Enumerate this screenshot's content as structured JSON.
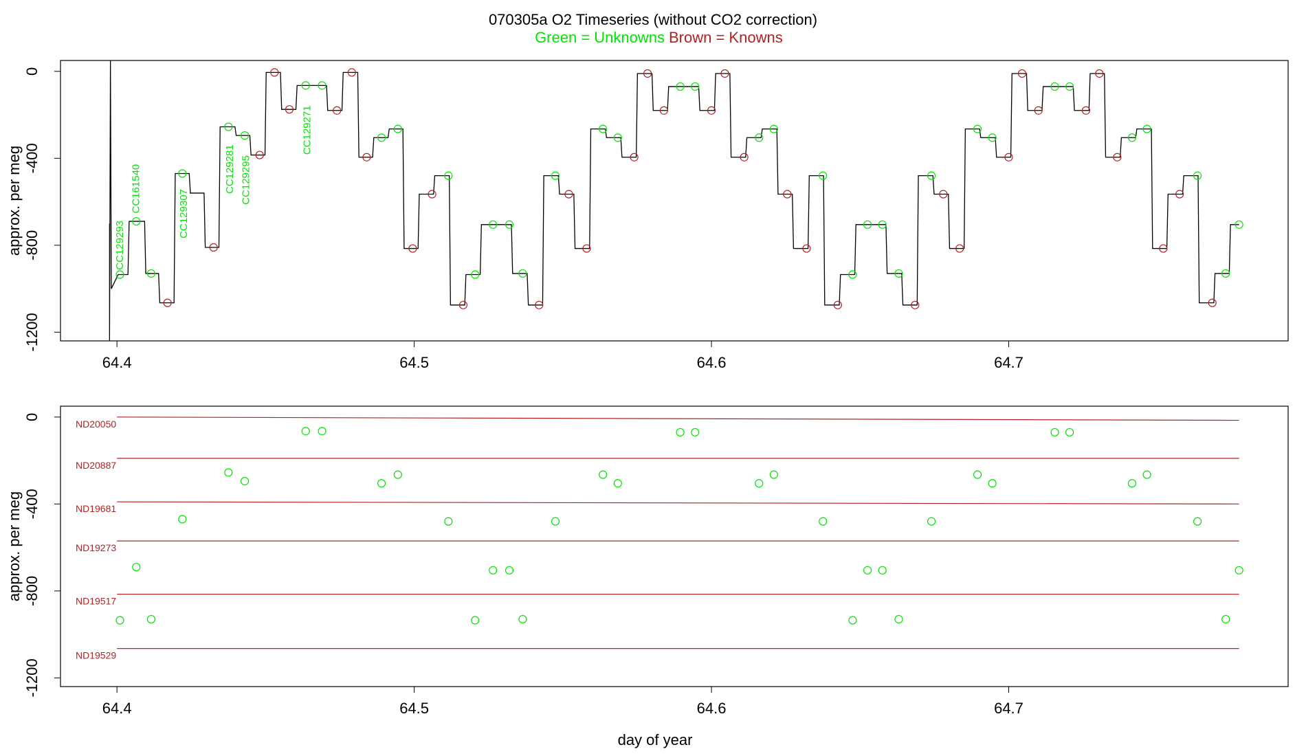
{
  "header": {
    "title": "070305a   O2 Timeseries (without CO2 correction)",
    "legend_green": "Green = Unknowns",
    "legend_brown": "Brown = Knowns"
  },
  "colors": {
    "unknown": "#00e400",
    "known": "#b22222",
    "trace": "#000000"
  },
  "chart_data": [
    {
      "type": "line",
      "panel": "top",
      "ylabel": "approx. per meg",
      "xlim": [
        64.381,
        64.794
      ],
      "ylim": [
        -1240,
        50
      ],
      "x_ticks": [
        64.4,
        64.5,
        64.6,
        64.7
      ],
      "x_tick_labels": [
        "64.4",
        "64.5",
        "64.6",
        "64.7"
      ],
      "y_ticks": [
        0,
        -400,
        -800,
        -1200
      ],
      "y_tick_labels": [
        "0",
        "-400",
        "-800",
        "-1200"
      ],
      "trace_spike": {
        "x": 64.3975,
        "ymin": -1240,
        "ymax": 50
      },
      "trace_segments": [
        {
          "x0": 64.4004,
          "x1": 64.4037,
          "y": -935
        },
        {
          "x0": 64.4057,
          "x1": 64.4093,
          "y": -690
        },
        {
          "x0": 64.4108,
          "x1": 64.414,
          "y": -930
        },
        {
          "x0": 64.4157,
          "x1": 64.4192,
          "y": -1065
        },
        {
          "x0": 64.4208,
          "x1": 64.4243,
          "y": -470
        },
        {
          "x0": 64.4245,
          "x1": 64.4293,
          "y": -560
        },
        {
          "x0": 64.4305,
          "x1": 64.4343,
          "y": -810
        },
        {
          "x0": 64.4358,
          "x1": 64.4397,
          "y": -255
        },
        {
          "x0": 64.441,
          "x1": 64.4447,
          "y": -295
        },
        {
          "x0": 64.446,
          "x1": 64.4498,
          "y": -385
        },
        {
          "x0": 64.4512,
          "x1": 64.455,
          "y": -5
        },
        {
          "x0": 64.4565,
          "x1": 64.4602,
          "y": -175
        },
        {
          "x0": 64.4617,
          "x1": 64.4652,
          "y": -65
        },
        {
          "x0": 64.4668,
          "x1": 64.4705,
          "y": -65
        },
        {
          "x0": 64.472,
          "x1": 64.4757,
          "y": -180
        },
        {
          "x0": 64.4773,
          "x1": 64.481,
          "y": -5
        },
        {
          "x0": 64.4823,
          "x1": 64.486,
          "y": -395
        },
        {
          "x0": 64.4875,
          "x1": 64.4912,
          "y": -305
        },
        {
          "x0": 64.4927,
          "x1": 64.4962,
          "y": -265
        },
        {
          "x0": 64.4978,
          "x1": 64.5013,
          "y": -815
        },
        {
          "x0": 64.503,
          "x1": 64.5065,
          "y": -565
        },
        {
          "x0": 64.5082,
          "x1": 64.5118,
          "y": -480
        },
        {
          "x0": 64.5133,
          "x1": 64.517,
          "y": -1075
        },
        {
          "x0": 64.5185,
          "x1": 64.5222,
          "y": -935
        },
        {
          "x0": 64.5238,
          "x1": 64.5275,
          "y": -705
        },
        {
          "x0": 64.529,
          "x1": 64.5327,
          "y": -705
        },
        {
          "x0": 64.5342,
          "x1": 64.538,
          "y": -930
        },
        {
          "x0": 64.5395,
          "x1": 64.5432,
          "y": -1075
        },
        {
          "x0": 64.5448,
          "x1": 64.5485,
          "y": -480
        },
        {
          "x0": 64.55,
          "x1": 64.5537,
          "y": -565
        },
        {
          "x0": 64.5552,
          "x1": 64.559,
          "y": -815
        },
        {
          "x0": 64.5605,
          "x1": 64.5643,
          "y": -265
        },
        {
          "x0": 64.5657,
          "x1": 64.5695,
          "y": -305
        },
        {
          "x0": 64.571,
          "x1": 64.5747,
          "y": -395
        },
        {
          "x0": 64.5762,
          "x1": 64.58,
          "y": -10
        },
        {
          "x0": 64.5815,
          "x1": 64.5852,
          "y": -180
        },
        {
          "x0": 64.5867,
          "x1": 64.5905,
          "y": -70
        },
        {
          "x0": 64.592,
          "x1": 64.5957,
          "y": -70
        },
        {
          "x0": 64.5972,
          "x1": 64.601,
          "y": -180
        },
        {
          "x0": 64.6025,
          "x1": 64.6062,
          "y": -10
        },
        {
          "x0": 64.6077,
          "x1": 64.6115,
          "y": -395
        },
        {
          "x0": 64.613,
          "x1": 64.6167,
          "y": -305
        },
        {
          "x0": 64.6182,
          "x1": 64.622,
          "y": -265
        },
        {
          "x0": 64.6235,
          "x1": 64.6272,
          "y": -565
        },
        {
          "x0": 64.6287,
          "x1": 64.6325,
          "y": -815
        },
        {
          "x0": 64.634,
          "x1": 64.6377,
          "y": -480
        },
        {
          "x0": 64.6392,
          "x1": 64.643,
          "y": -1075
        },
        {
          "x0": 64.6445,
          "x1": 64.6482,
          "y": -935
        },
        {
          "x0": 64.6497,
          "x1": 64.6535,
          "y": -705
        },
        {
          "x0": 64.655,
          "x1": 64.6587,
          "y": -705
        },
        {
          "x0": 64.6602,
          "x1": 64.664,
          "y": -930
        },
        {
          "x0": 64.6655,
          "x1": 64.6692,
          "y": -1075
        },
        {
          "x0": 64.6707,
          "x1": 64.6745,
          "y": -480
        },
        {
          "x0": 64.676,
          "x1": 64.6797,
          "y": -565
        },
        {
          "x0": 64.6812,
          "x1": 64.685,
          "y": -815
        },
        {
          "x0": 64.6865,
          "x1": 64.6902,
          "y": -265
        },
        {
          "x0": 64.6917,
          "x1": 64.6955,
          "y": -305
        },
        {
          "x0": 64.697,
          "x1": 64.7007,
          "y": -395
        },
        {
          "x0": 64.7022,
          "x1": 64.706,
          "y": -10
        },
        {
          "x0": 64.7075,
          "x1": 64.7112,
          "y": -180
        },
        {
          "x0": 64.7127,
          "x1": 64.7165,
          "y": -70
        },
        {
          "x0": 64.718,
          "x1": 64.7217,
          "y": -70
        },
        {
          "x0": 64.7232,
          "x1": 64.727,
          "y": -180
        },
        {
          "x0": 64.7285,
          "x1": 64.7322,
          "y": -10
        },
        {
          "x0": 64.7337,
          "x1": 64.7375,
          "y": -395
        },
        {
          "x0": 64.739,
          "x1": 64.7427,
          "y": -305
        },
        {
          "x0": 64.7442,
          "x1": 64.748,
          "y": -265
        },
        {
          "x0": 64.7495,
          "x1": 64.7532,
          "y": -815
        },
        {
          "x0": 64.7547,
          "x1": 64.7585,
          "y": -565
        },
        {
          "x0": 64.76,
          "x1": 64.7637,
          "y": -480
        },
        {
          "x0": 64.7652,
          "x1": 64.769,
          "y": -1065
        },
        {
          "x0": 64.7705,
          "x1": 64.7742,
          "y": -930
        },
        {
          "x0": 64.7757,
          "x1": 64.7775,
          "y": -705
        }
      ],
      "unknown_points": [
        {
          "x": 64.401,
          "y": -935
        },
        {
          "x": 64.4065,
          "y": -690
        },
        {
          "x": 64.4115,
          "y": -930
        },
        {
          "x": 64.422,
          "y": -470
        },
        {
          "x": 64.4375,
          "y": -255
        },
        {
          "x": 64.443,
          "y": -295
        },
        {
          "x": 64.4635,
          "y": -65
        },
        {
          "x": 64.469,
          "y": -65
        },
        {
          "x": 64.489,
          "y": -305
        },
        {
          "x": 64.4945,
          "y": -265
        },
        {
          "x": 64.5115,
          "y": -480
        },
        {
          "x": 64.5205,
          "y": -935
        },
        {
          "x": 64.5265,
          "y": -705
        },
        {
          "x": 64.532,
          "y": -705
        },
        {
          "x": 64.5365,
          "y": -930
        },
        {
          "x": 64.5475,
          "y": -480
        },
        {
          "x": 64.5635,
          "y": -265
        },
        {
          "x": 64.5685,
          "y": -305
        },
        {
          "x": 64.5895,
          "y": -70
        },
        {
          "x": 64.5945,
          "y": -70
        },
        {
          "x": 64.616,
          "y": -305
        },
        {
          "x": 64.621,
          "y": -265
        },
        {
          "x": 64.6375,
          "y": -480
        },
        {
          "x": 64.6475,
          "y": -935
        },
        {
          "x": 64.6525,
          "y": -705
        },
        {
          "x": 64.6575,
          "y": -705
        },
        {
          "x": 64.663,
          "y": -930
        },
        {
          "x": 64.674,
          "y": -480
        },
        {
          "x": 64.6895,
          "y": -265
        },
        {
          "x": 64.6945,
          "y": -305
        },
        {
          "x": 64.7155,
          "y": -70
        },
        {
          "x": 64.7205,
          "y": -70
        },
        {
          "x": 64.7415,
          "y": -305
        },
        {
          "x": 64.7465,
          "y": -265
        },
        {
          "x": 64.7635,
          "y": -480
        },
        {
          "x": 64.773,
          "y": -930
        },
        {
          "x": 64.7775,
          "y": -705
        }
      ],
      "known_points": [
        {
          "x": 64.417,
          "y": -1065
        },
        {
          "x": 64.4325,
          "y": -810
        },
        {
          "x": 64.448,
          "y": -385
        },
        {
          "x": 64.453,
          "y": -5
        },
        {
          "x": 64.458,
          "y": -175
        },
        {
          "x": 64.474,
          "y": -180
        },
        {
          "x": 64.479,
          "y": -5
        },
        {
          "x": 64.484,
          "y": -395
        },
        {
          "x": 64.4995,
          "y": -815
        },
        {
          "x": 64.506,
          "y": -565
        },
        {
          "x": 64.5165,
          "y": -1075
        },
        {
          "x": 64.542,
          "y": -1075
        },
        {
          "x": 64.552,
          "y": -565
        },
        {
          "x": 64.558,
          "y": -815
        },
        {
          "x": 64.574,
          "y": -395
        },
        {
          "x": 64.5785,
          "y": -10
        },
        {
          "x": 64.584,
          "y": -180
        },
        {
          "x": 64.6,
          "y": -180
        },
        {
          "x": 64.6045,
          "y": -10
        },
        {
          "x": 64.611,
          "y": -395
        },
        {
          "x": 64.6255,
          "y": -565
        },
        {
          "x": 64.632,
          "y": -815
        },
        {
          "x": 64.6425,
          "y": -1075
        },
        {
          "x": 64.6685,
          "y": -1075
        },
        {
          "x": 64.678,
          "y": -565
        },
        {
          "x": 64.6835,
          "y": -815
        },
        {
          "x": 64.7,
          "y": -395
        },
        {
          "x": 64.7045,
          "y": -10
        },
        {
          "x": 64.71,
          "y": -180
        },
        {
          "x": 64.726,
          "y": -180
        },
        {
          "x": 64.7305,
          "y": -10
        },
        {
          "x": 64.7365,
          "y": -395
        },
        {
          "x": 64.752,
          "y": -815
        },
        {
          "x": 64.7575,
          "y": -565
        },
        {
          "x": 64.7685,
          "y": -1065
        }
      ],
      "annotations": [
        {
          "text": "CC129293",
          "x": 64.402,
          "y": -800
        },
        {
          "text": "CC161540",
          "x": 64.4075,
          "y": -540
        },
        {
          "text": "CC129307",
          "x": 64.4235,
          "y": -655
        },
        {
          "text": "CC129281",
          "x": 64.439,
          "y": -450
        },
        {
          "text": "CC129295",
          "x": 64.4445,
          "y": -500
        },
        {
          "text": "CC129271",
          "x": 64.465,
          "y": -270
        }
      ]
    },
    {
      "type": "scatter",
      "panel": "bottom",
      "xlabel": "day of year",
      "ylabel": "approx. per meg",
      "xlim": [
        64.381,
        64.794
      ],
      "ylim": [
        -1240,
        50
      ],
      "x_ticks": [
        64.4,
        64.5,
        64.6,
        64.7
      ],
      "x_tick_labels": [
        "64.4",
        "64.5",
        "64.6",
        "64.7"
      ],
      "y_ticks": [
        0,
        -400,
        -800,
        -1200
      ],
      "y_tick_labels": [
        "0",
        "-400",
        "-800",
        "-1200"
      ],
      "reference_lines": [
        {
          "name": "ND20050",
          "x0": 64.4,
          "x1": 64.7775,
          "y_start": 0,
          "y_end": -15
        },
        {
          "name": "ND20887",
          "x0": 64.4,
          "x1": 64.7775,
          "y_start": -190,
          "y_end": -190
        },
        {
          "name": "ND19681",
          "x0": 64.4,
          "x1": 64.7775,
          "y_start": -390,
          "y_end": -400
        },
        {
          "name": "ND19273",
          "x0": 64.4,
          "x1": 64.7775,
          "y_start": -570,
          "y_end": -570
        },
        {
          "name": "ND19517",
          "x0": 64.4,
          "x1": 64.7775,
          "y_start": -815,
          "y_end": -815
        },
        {
          "name": "ND19529",
          "x0": 64.4,
          "x1": 64.7775,
          "y_start": -1065,
          "y_end": -1065
        }
      ],
      "unknown_points": [
        {
          "x": 64.401,
          "y": -935
        },
        {
          "x": 64.4065,
          "y": -690
        },
        {
          "x": 64.4115,
          "y": -930
        },
        {
          "x": 64.422,
          "y": -470
        },
        {
          "x": 64.4375,
          "y": -255
        },
        {
          "x": 64.443,
          "y": -295
        },
        {
          "x": 64.4635,
          "y": -65
        },
        {
          "x": 64.469,
          "y": -65
        },
        {
          "x": 64.489,
          "y": -305
        },
        {
          "x": 64.4945,
          "y": -265
        },
        {
          "x": 64.5115,
          "y": -480
        },
        {
          "x": 64.5205,
          "y": -935
        },
        {
          "x": 64.5265,
          "y": -705
        },
        {
          "x": 64.532,
          "y": -705
        },
        {
          "x": 64.5365,
          "y": -930
        },
        {
          "x": 64.5475,
          "y": -480
        },
        {
          "x": 64.5635,
          "y": -265
        },
        {
          "x": 64.5685,
          "y": -305
        },
        {
          "x": 64.5895,
          "y": -70
        },
        {
          "x": 64.5945,
          "y": -70
        },
        {
          "x": 64.616,
          "y": -305
        },
        {
          "x": 64.621,
          "y": -265
        },
        {
          "x": 64.6375,
          "y": -480
        },
        {
          "x": 64.6475,
          "y": -935
        },
        {
          "x": 64.6525,
          "y": -705
        },
        {
          "x": 64.6575,
          "y": -705
        },
        {
          "x": 64.663,
          "y": -930
        },
        {
          "x": 64.674,
          "y": -480
        },
        {
          "x": 64.6895,
          "y": -265
        },
        {
          "x": 64.6945,
          "y": -305
        },
        {
          "x": 64.7155,
          "y": -70
        },
        {
          "x": 64.7205,
          "y": -70
        },
        {
          "x": 64.7415,
          "y": -305
        },
        {
          "x": 64.7465,
          "y": -265
        },
        {
          "x": 64.7635,
          "y": -480
        },
        {
          "x": 64.773,
          "y": -930
        },
        {
          "x": 64.7775,
          "y": -705
        }
      ]
    }
  ]
}
